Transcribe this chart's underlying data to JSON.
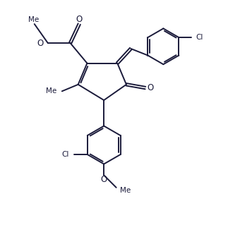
{
  "bg_color": "#ffffff",
  "line_color": "#1a1a3a",
  "line_width": 1.4,
  "font_size": 7.5,
  "figsize": [
    3.23,
    3.19
  ],
  "dpi": 100,
  "xlim": [
    0,
    10
  ],
  "ylim": [
    0,
    10
  ]
}
